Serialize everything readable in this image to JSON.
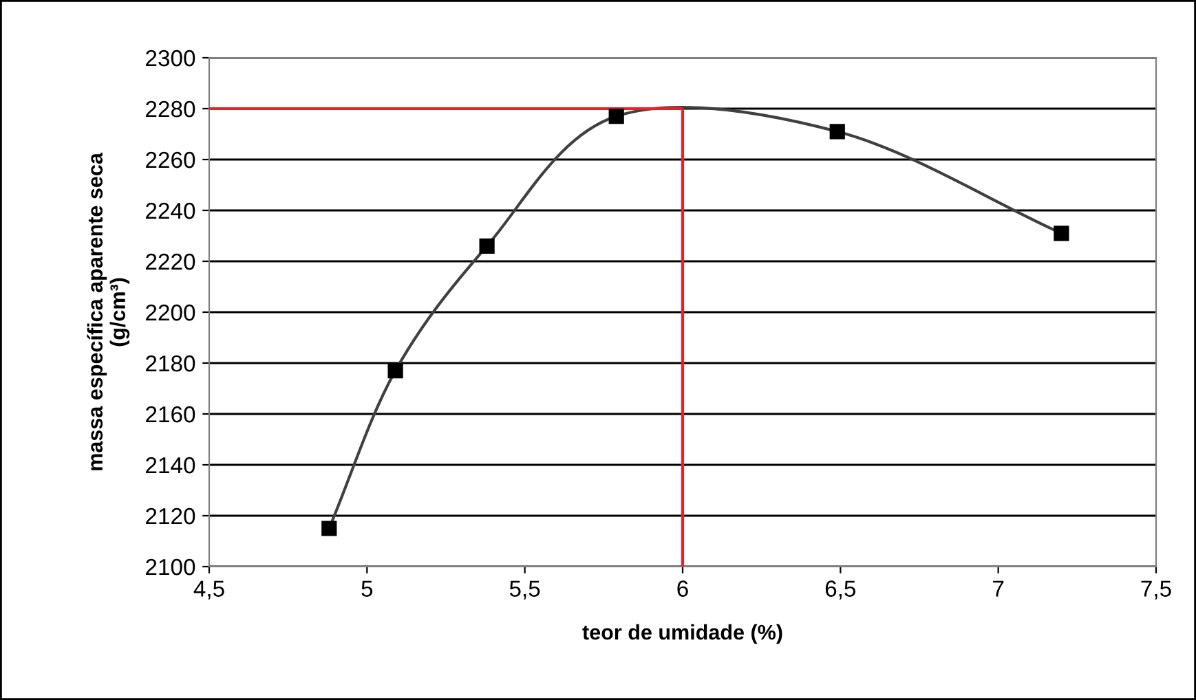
{
  "chart_data": {
    "type": "line",
    "xlabel": "teor de umidade (%)",
    "ylabel": "massa específica aparente seca\n(g/cm³)",
    "series": [
      {
        "color": "#404040",
        "marker": "square",
        "x": [
          4.88,
          5.09,
          5.38,
          5.79,
          6.49,
          7.2
        ],
        "values": [
          2115,
          2177,
          2226,
          2277,
          2271,
          2231
        ]
      },
      {
        "color": "#e8202a",
        "marker": "none",
        "x": [
          4.5,
          6
        ],
        "values": [
          2280,
          2280
        ]
      },
      {
        "color": "#e8202a",
        "marker": "none",
        "x": [
          6,
          6
        ],
        "values": [
          2100,
          2280
        ]
      }
    ],
    "xlim": [
      4.5,
      7.5
    ],
    "xticks": [
      {
        "value": 4.5,
        "label": "4,5"
      },
      5,
      {
        "value": 5.5,
        "label": "5,5"
      },
      6,
      {
        "value": 6.5,
        "label": "6,5"
      },
      7,
      {
        "value": 7.5,
        "label": "7,5"
      }
    ],
    "ylim": [
      2100,
      2300
    ],
    "yticks": [
      2100,
      2120,
      2140,
      2160,
      2180,
      2200,
      2220,
      2240,
      2260,
      2280,
      2300
    ],
    "grid": "y",
    "legend": false
  }
}
